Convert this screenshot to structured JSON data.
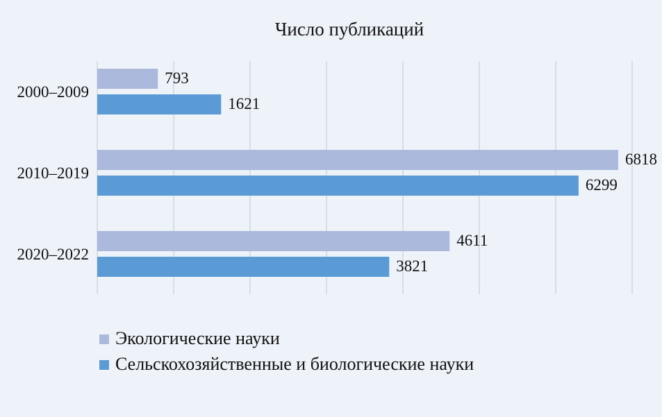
{
  "chart_data": {
    "type": "bar",
    "orientation": "horizontal",
    "title": "Число публикаций",
    "categories": [
      "2000–2009",
      "2010–2019",
      "2020–2022"
    ],
    "series": [
      {
        "name": "Экологические науки",
        "color": "#aab9dc",
        "values": [
          793,
          6818,
          4611
        ]
      },
      {
        "name": "Сельскохозяйственные и биологические науки",
        "color": "#5b9bd5",
        "values": [
          1621,
          6299,
          3821
        ]
      }
    ],
    "xlim": [
      0,
      7000
    ],
    "grid": true,
    "legend_position": "bottom-left",
    "xlabel": "",
    "ylabel": ""
  }
}
